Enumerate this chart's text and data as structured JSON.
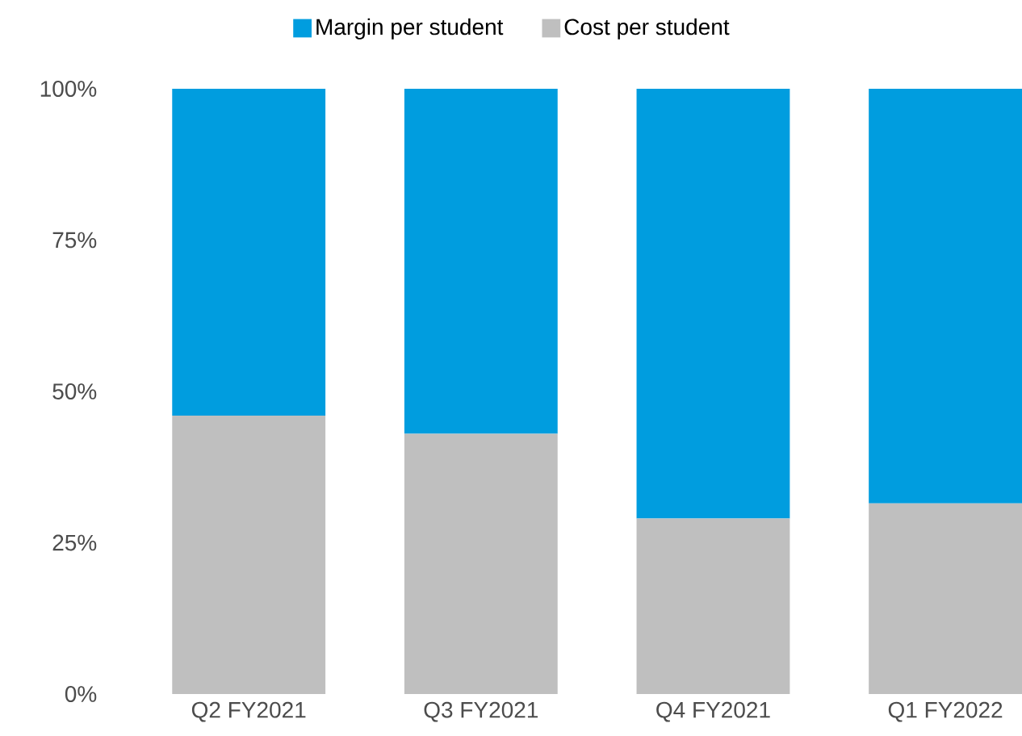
{
  "chart_data": {
    "type": "bar",
    "stacked": true,
    "categories": [
      "Q2 FY2021",
      "Q3 FY2021",
      "Q4 FY2021",
      "Q1 FY2022"
    ],
    "series": [
      {
        "name": "Cost per student",
        "color": "#bfbfbf",
        "values": [
          46,
          43,
          29,
          31.5
        ]
      },
      {
        "name": "Margin per student",
        "color": "#009ddf",
        "values": [
          54,
          57,
          71,
          68.5
        ]
      }
    ],
    "ylim": [
      0,
      100
    ],
    "yticks": [
      {
        "value": 0,
        "label": "0%"
      },
      {
        "value": 25,
        "label": "25%"
      },
      {
        "value": 50,
        "label": "50%"
      },
      {
        "value": 75,
        "label": "75%"
      },
      {
        "value": 100,
        "label": "100%"
      }
    ],
    "grid": false,
    "legend": "top"
  }
}
